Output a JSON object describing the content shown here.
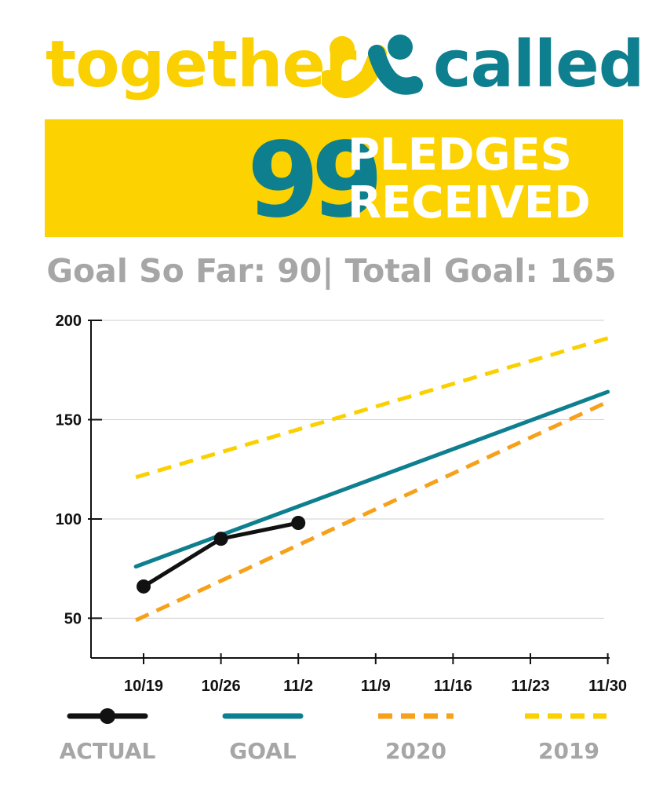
{
  "brand": {
    "word_left": "together",
    "word_right": "called",
    "colors": {
      "yellow": "#fbd000",
      "teal": "#0e7f8f",
      "orange": "#f7a11a"
    }
  },
  "banner": {
    "count": "99",
    "line1": "PLEDGES",
    "line2": "RECEIVED",
    "bg": "#fdd201",
    "number_color": "#0e7f8f"
  },
  "goals_text": "Goal So Far: 90| Total Goal: 165",
  "chart_data": {
    "type": "line",
    "x": [
      "10/19",
      "10/26",
      "11/2",
      "11/9",
      "11/16",
      "11/23",
      "11/30"
    ],
    "y_ticks": [
      50,
      100,
      150,
      200
    ],
    "ylim": [
      30,
      200
    ],
    "grid": true,
    "legend_position": "bottom",
    "series": [
      {
        "name": "ACTUAL",
        "color": "#111111",
        "style": "solid-markers",
        "points": [
          [
            0,
            66
          ],
          [
            1,
            90
          ],
          [
            2,
            98
          ]
        ]
      },
      {
        "name": "GOAL",
        "color": "#0e7f8f",
        "style": "solid",
        "points": [
          [
            -0.1,
            76
          ],
          [
            6.0,
            164
          ]
        ]
      },
      {
        "name": "2020",
        "color": "#f7a11a",
        "style": "dashed",
        "points": [
          [
            -0.1,
            49
          ],
          [
            6.0,
            159
          ]
        ]
      },
      {
        "name": "2019",
        "color": "#fbd000",
        "style": "dashed",
        "points": [
          [
            -0.1,
            121
          ],
          [
            6.0,
            191
          ]
        ]
      }
    ]
  },
  "legend": [
    {
      "label": "ACTUAL",
      "icon": "line-with-dot"
    },
    {
      "label": "GOAL",
      "icon": "solid-line"
    },
    {
      "label": "2020",
      "icon": "dashed-line"
    },
    {
      "label": "2019",
      "icon": "dashed-line"
    }
  ]
}
